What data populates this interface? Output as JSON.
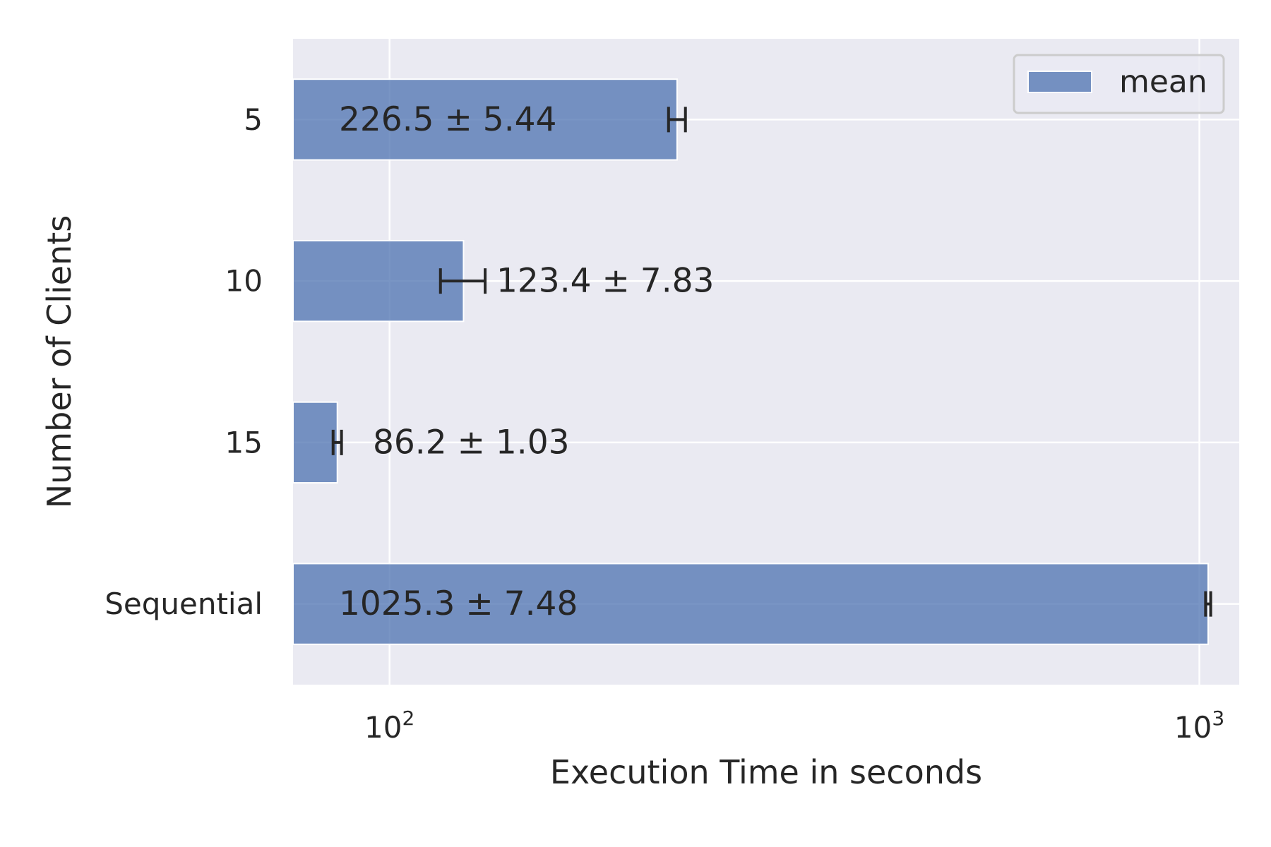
{
  "chart_data": {
    "type": "bar",
    "orientation": "horizontal",
    "categories": [
      "5",
      "10",
      "15",
      "Sequential"
    ],
    "series": [
      {
        "name": "mean",
        "values": [
          226.5,
          123.4,
          86.2,
          1025.3
        ],
        "errors": [
          5.44,
          7.83,
          1.03,
          7.48
        ],
        "labels": [
          "226.5 ± 5.44",
          "123.4 ± 7.83",
          "86.2 ± 1.03",
          "1025.3 ± 7.48"
        ]
      }
    ],
    "xlabel": "Execution Time in seconds",
    "ylabel": "Number of Clients",
    "xscale": "log",
    "xlim": [
      76,
      1120
    ],
    "xticks": [
      {
        "value": 100,
        "base": "10",
        "exp": "2"
      },
      {
        "value": 1000,
        "base": "10",
        "exp": "3"
      }
    ],
    "grid": true,
    "legend": {
      "position": "top-right",
      "entries": [
        "mean"
      ]
    },
    "colors": {
      "bar": "#4c72b0",
      "background": "#eaeaf2",
      "grid": "#ffffff",
      "text": "#262626"
    }
  }
}
